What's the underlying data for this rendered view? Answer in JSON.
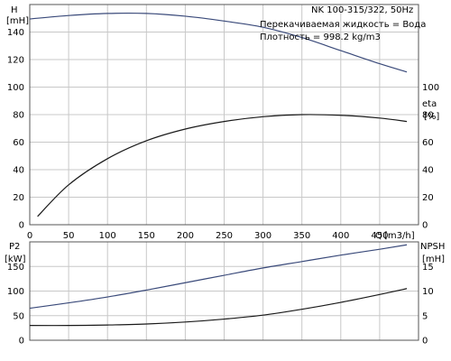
{
  "title": "NK 100-315/322, 50Hz",
  "annotation": {
    "line1": "Перекачиваемая жидкость = Вода",
    "line2": "Плотность = 998.2 kg/m3"
  },
  "chart_data": [
    {
      "type": "line",
      "panel": "top",
      "xlabel": "Q",
      "xunit": "[m3/h]",
      "xlim": [
        0,
        500
      ],
      "xticks": [
        0,
        50,
        100,
        150,
        200,
        250,
        300,
        350,
        400,
        450
      ],
      "left_axis": {
        "label": "H",
        "unit": "[mH]",
        "ylim": [
          0,
          160
        ],
        "ticks": [
          0,
          20,
          40,
          60,
          80,
          100,
          120,
          140
        ]
      },
      "right_axis": {
        "label": "eta",
        "unit": "[%]",
        "ylim": [
          0,
          160
        ],
        "ticks": [
          0,
          20,
          40,
          60,
          80,
          100
        ]
      },
      "grid": true,
      "series": [
        {
          "color": "#3a4a7a",
          "axis": "left",
          "x": [
            0,
            50,
            100,
            150,
            200,
            250,
            300,
            350,
            400,
            450,
            485
          ],
          "y": [
            149.5,
            152,
            153.5,
            153.5,
            151.5,
            148,
            143.5,
            136,
            126.5,
            117,
            111
          ]
        },
        {
          "color": "#1a1a1a",
          "axis": "right",
          "x": [
            10,
            50,
            100,
            150,
            200,
            250,
            300,
            350,
            400,
            450,
            485
          ],
          "y": [
            6,
            29,
            48,
            61,
            69.5,
            75,
            78.5,
            80,
            79.5,
            77.5,
            75
          ]
        }
      ]
    },
    {
      "type": "line",
      "panel": "bottom",
      "xlim": [
        0,
        500
      ],
      "xticks": [
        0,
        50,
        100,
        150,
        200,
        250,
        300,
        350,
        400,
        450
      ],
      "left_axis": {
        "label": "P2",
        "unit": "[kW]",
        "ylim": [
          0,
          200
        ],
        "ticks": [
          0,
          50,
          100,
          150
        ]
      },
      "right_axis": {
        "label": "NPSH",
        "unit": "[mH]",
        "ylim": [
          0,
          20
        ],
        "ticks": [
          0,
          5,
          10,
          15
        ]
      },
      "grid": true,
      "series": [
        {
          "color": "#3a4a7a",
          "axis": "left",
          "x": [
            0,
            50,
            100,
            150,
            200,
            250,
            300,
            350,
            400,
            450,
            485
          ],
          "y": [
            65,
            76,
            88,
            102,
            117,
            132,
            147,
            160,
            173,
            185,
            194
          ]
        },
        {
          "color": "#1a1a1a",
          "axis": "right",
          "x": [
            0,
            50,
            100,
            150,
            200,
            250,
            300,
            350,
            400,
            450,
            485
          ],
          "y": [
            3,
            3,
            3.1,
            3.3,
            3.7,
            4.3,
            5.1,
            6.3,
            7.7,
            9.3,
            10.5
          ]
        }
      ]
    }
  ]
}
